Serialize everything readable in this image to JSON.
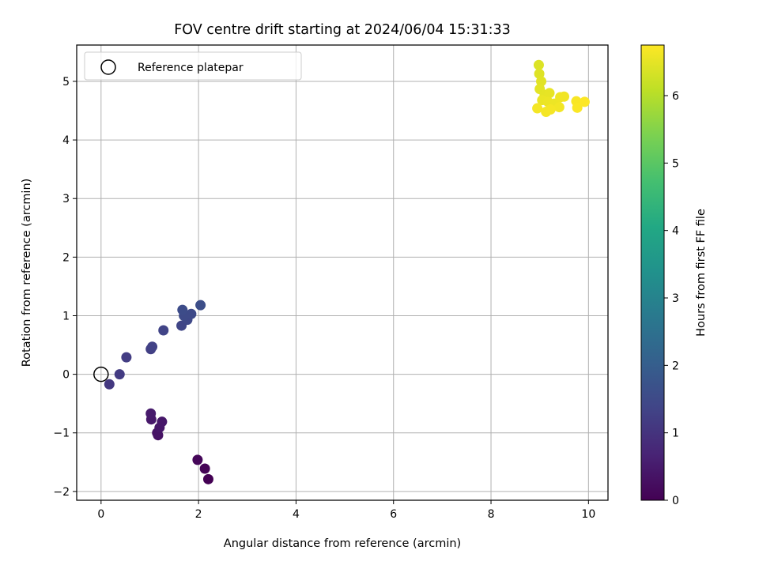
{
  "chart_data": {
    "type": "scatter",
    "title": "FOV centre drift starting at 2024/06/04 15:31:33",
    "xlabel": "Angular distance from reference (arcmin)",
    "ylabel": "Rotation from reference (arcmin)",
    "xlim": [
      -0.5,
      10.4
    ],
    "ylim": [
      -2.15,
      5.62
    ],
    "xticks": [
      0,
      2,
      4,
      6,
      8,
      10
    ],
    "xtick_labels": [
      "0",
      "2",
      "4",
      "6",
      "8",
      "10"
    ],
    "yticks": [
      -2,
      -1,
      0,
      1,
      2,
      3,
      4,
      5
    ],
    "ytick_labels": [
      "−2",
      "−1",
      "0",
      "1",
      "2",
      "3",
      "4",
      "5"
    ],
    "grid": true,
    "legend": {
      "placement": "top-left",
      "entries": [
        "Reference platepar"
      ]
    },
    "colorbar": {
      "label": "Hours from first FF file",
      "range": [
        0,
        6.75
      ],
      "ticks": [
        0,
        1,
        2,
        3,
        4,
        5,
        6
      ],
      "tick_labels": [
        "0",
        "1",
        "2",
        "3",
        "4",
        "5",
        "6"
      ],
      "colormap": "viridis"
    },
    "reference_point": {
      "x": 0,
      "y": 0
    },
    "points": [
      {
        "x": 2.2,
        "y": -1.79,
        "t": 0.0
      },
      {
        "x": 2.13,
        "y": -1.61,
        "t": 0.05
      },
      {
        "x": 1.98,
        "y": -1.46,
        "t": 0.1
      },
      {
        "x": 1.17,
        "y": -1.04,
        "t": 0.3
      },
      {
        "x": 1.15,
        "y": -1.0,
        "t": 0.35
      },
      {
        "x": 1.2,
        "y": -0.91,
        "t": 0.4
      },
      {
        "x": 1.25,
        "y": -0.81,
        "t": 0.42
      },
      {
        "x": 1.03,
        "y": -0.77,
        "t": 0.45
      },
      {
        "x": 1.02,
        "y": -0.67,
        "t": 0.5
      },
      {
        "x": 0.17,
        "y": -0.17,
        "t": 1.1
      },
      {
        "x": 0.38,
        "y": 0.0,
        "t": 1.15
      },
      {
        "x": 0.52,
        "y": 0.29,
        "t": 1.2
      },
      {
        "x": 1.02,
        "y": 0.43,
        "t": 1.25
      },
      {
        "x": 1.05,
        "y": 0.47,
        "t": 1.3
      },
      {
        "x": 1.28,
        "y": 0.75,
        "t": 1.35
      },
      {
        "x": 1.65,
        "y": 0.83,
        "t": 1.4
      },
      {
        "x": 1.77,
        "y": 0.93,
        "t": 1.45
      },
      {
        "x": 1.85,
        "y": 1.03,
        "t": 1.5
      },
      {
        "x": 1.7,
        "y": 1.0,
        "t": 1.5
      },
      {
        "x": 1.67,
        "y": 1.1,
        "t": 1.55
      },
      {
        "x": 2.04,
        "y": 1.18,
        "t": 1.6
      },
      {
        "x": 8.98,
        "y": 5.28,
        "t": 6.4
      },
      {
        "x": 8.99,
        "y": 5.13,
        "t": 6.42
      },
      {
        "x": 9.03,
        "y": 5.0,
        "t": 6.45
      },
      {
        "x": 9.0,
        "y": 4.87,
        "t": 6.48
      },
      {
        "x": 9.1,
        "y": 4.77,
        "t": 6.5
      },
      {
        "x": 9.2,
        "y": 4.8,
        "t": 6.52
      },
      {
        "x": 9.05,
        "y": 4.68,
        "t": 6.55
      },
      {
        "x": 9.17,
        "y": 4.65,
        "t": 6.57
      },
      {
        "x": 9.3,
        "y": 4.62,
        "t": 6.58
      },
      {
        "x": 9.42,
        "y": 4.73,
        "t": 6.6
      },
      {
        "x": 9.5,
        "y": 4.74,
        "t": 6.62
      },
      {
        "x": 9.4,
        "y": 4.56,
        "t": 6.63
      },
      {
        "x": 8.95,
        "y": 4.54,
        "t": 6.65
      },
      {
        "x": 9.13,
        "y": 4.48,
        "t": 6.66
      },
      {
        "x": 9.22,
        "y": 4.52,
        "t": 6.67
      },
      {
        "x": 9.75,
        "y": 4.66,
        "t": 6.7
      },
      {
        "x": 9.77,
        "y": 4.55,
        "t": 6.72
      },
      {
        "x": 9.92,
        "y": 4.65,
        "t": 6.74
      }
    ]
  }
}
